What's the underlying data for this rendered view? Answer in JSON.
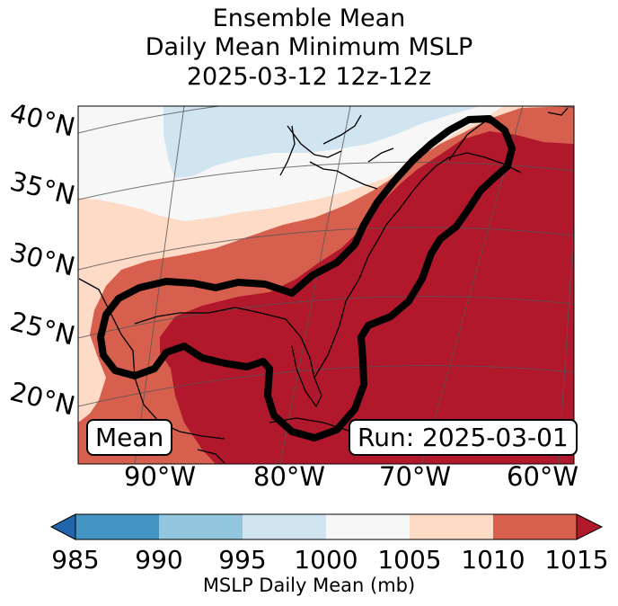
{
  "title": {
    "line1": "Ensemble Mean",
    "line2": "Daily Mean Minimum MSLP",
    "line3": "2025-03-12 12z-12z"
  },
  "map": {
    "lat_labels": [
      "40°N",
      "35°N",
      "30°N",
      "25°N",
      "20°N"
    ],
    "lon_labels": [
      "90°W",
      "80°W",
      "70°W",
      "60°W"
    ],
    "mean_label": "Mean",
    "run_label": "Run: 2025-03-01"
  },
  "colorbar": {
    "ticks": [
      "985",
      "990",
      "995",
      "1000",
      "1005",
      "1010",
      "1015"
    ],
    "label": "MSLP Daily Mean (mb)",
    "colors": {
      "under": "#2166ac",
      "b985_990": "#4393c3",
      "b990_995": "#92c5de",
      "b995_1000": "#d1e5f0",
      "b1000_1005": "#f7f7f7",
      "b1005_1010": "#fddbc7",
      "b1010_1015": "#d6604d",
      "over": "#b2182b"
    }
  }
}
